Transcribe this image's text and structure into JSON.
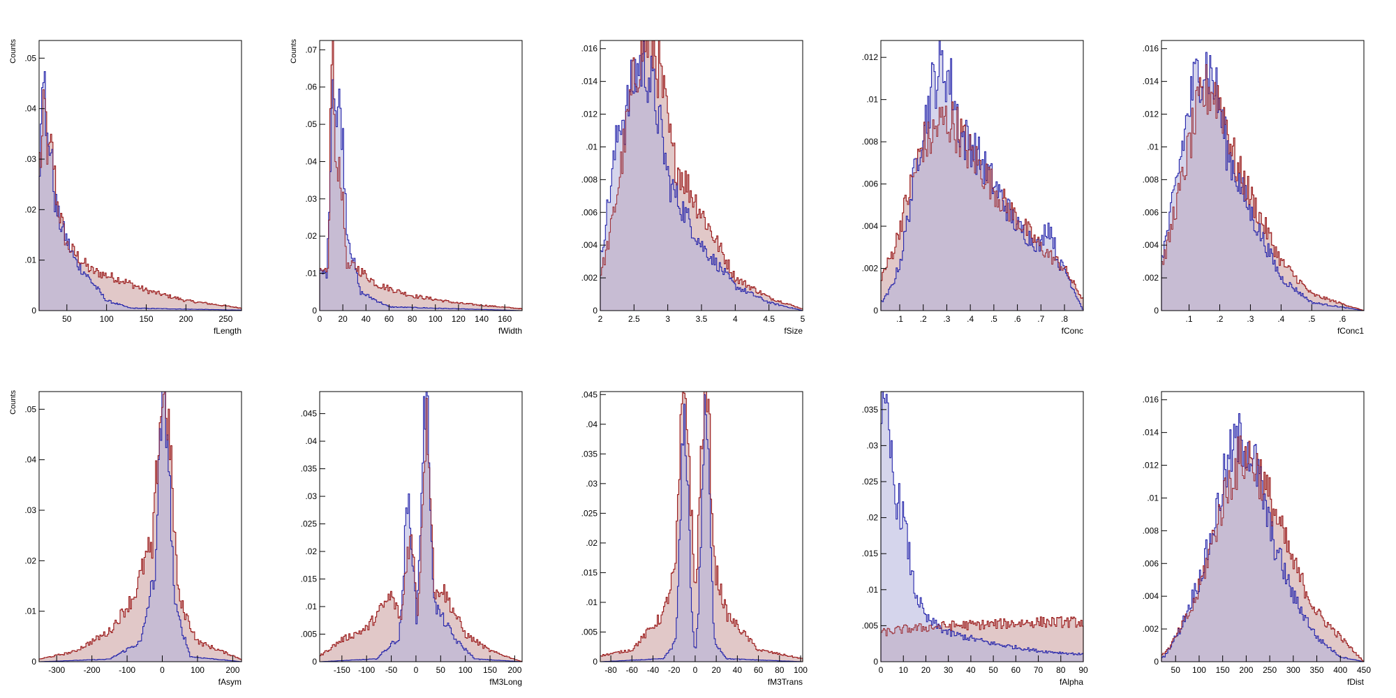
{
  "colors": {
    "signal": "#2222aa",
    "signal_fill": "#b3b3dd",
    "background": "#9b1c1c",
    "background_fill": "#c89a9a",
    "frame": "#000000"
  },
  "chart_data": [
    {
      "type": "histogram",
      "xlabel": "fLength",
      "ylabel": "Counts",
      "xlim": [
        15,
        270
      ],
      "ylim": [
        0,
        0.0535
      ],
      "xticks": [
        50,
        100,
        150,
        200,
        250
      ],
      "yticks": [
        0,
        0.01,
        0.02,
        0.03,
        0.04,
        0.05
      ],
      "series": [
        {
          "peaks": [
            [
              20,
              0.051,
              4
            ],
            [
              27,
              0.034,
              8
            ]
          ],
          "tail": [
            [
              25,
              0.03
            ],
            [
              40,
              0.018
            ],
            [
              60,
              0.01
            ],
            [
              80,
              0.006
            ],
            [
              100,
              0.002
            ],
            [
              130,
              0.0005
            ],
            [
              270,
              0.0001
            ]
          ]
        },
        {
          "peaks": [
            [
              22,
              0.04,
              5
            ],
            [
              30,
              0.032,
              8
            ]
          ],
          "tail": [
            [
              25,
              0.03
            ],
            [
              50,
              0.013
            ],
            [
              80,
              0.008
            ],
            [
              120,
              0.006
            ],
            [
              150,
              0.004
            ],
            [
              200,
              0.002
            ],
            [
              270,
              0.0005
            ]
          ]
        }
      ]
    },
    {
      "type": "histogram",
      "xlabel": "fWidth",
      "ylabel": "Counts",
      "xlim": [
        0,
        175
      ],
      "ylim": [
        0,
        0.0725
      ],
      "xticks": [
        0,
        20,
        40,
        60,
        80,
        100,
        120,
        140,
        160
      ],
      "yticks": [
        0,
        0.01,
        0.02,
        0.03,
        0.04,
        0.05,
        0.06,
        0.07
      ],
      "series": [
        {
          "peaks": [
            [
              12,
              0.065,
              3
            ],
            [
              17,
              0.055,
              5
            ]
          ],
          "tail": [
            [
              10,
              0.01
            ],
            [
              25,
              0.02
            ],
            [
              35,
              0.005
            ],
            [
              60,
              0.001
            ],
            [
              175,
              0.0
            ]
          ]
        },
        {
          "peaks": [
            [
              11,
              0.072,
              2
            ],
            [
              16,
              0.04,
              5
            ]
          ],
          "tail": [
            [
              10,
              0.01
            ],
            [
              30,
              0.012
            ],
            [
              50,
              0.007
            ],
            [
              80,
              0.004
            ],
            [
              120,
              0.002
            ],
            [
              175,
              0.0005
            ]
          ]
        }
      ]
    },
    {
      "type": "histogram",
      "xlabel": "fSize",
      "ylabel": "",
      "xlim": [
        2,
        5
      ],
      "ylim": [
        0,
        0.0165
      ],
      "xticks": [
        2,
        2.5,
        3,
        3.5,
        4,
        4.5,
        5
      ],
      "yticks": [
        0,
        0.002,
        0.004,
        0.006,
        0.008,
        0.01,
        0.012,
        0.014,
        0.016
      ],
      "series": [
        {
          "peaks": [
            [
              2.62,
              0.015,
              0.35
            ]
          ],
          "tail": [
            [
              2.0,
              0.003
            ],
            [
              2.3,
              0.012
            ],
            [
              3.0,
              0.008
            ],
            [
              3.5,
              0.004
            ],
            [
              4.0,
              0.0015
            ],
            [
              4.5,
              0.0005
            ],
            [
              5.0,
              0.0
            ]
          ]
        },
        {
          "peaks": [
            [
              2.7,
              0.0165,
              0.35
            ]
          ],
          "tail": [
            [
              2.0,
              0.0005
            ],
            [
              2.2,
              0.004
            ],
            [
              2.5,
              0.013
            ],
            [
              3.0,
              0.01
            ],
            [
              3.5,
              0.006
            ],
            [
              4.0,
              0.002
            ],
            [
              4.5,
              0.0008
            ],
            [
              5.0,
              0.0001
            ]
          ]
        }
      ]
    },
    {
      "type": "histogram",
      "xlabel": "fConc",
      "ylabel": "",
      "xlim": [
        0.02,
        0.88
      ],
      "ylim": [
        0,
        0.0128
      ],
      "xticks": [
        0.1,
        0.2,
        0.3,
        0.4,
        0.5,
        0.6,
        0.7,
        0.8
      ],
      "yticks": [
        0,
        0.002,
        0.004,
        0.006,
        0.008,
        0.01,
        0.012
      ],
      "series": [
        {
          "peaks": [
            [
              0.28,
              0.0115,
              0.1
            ],
            [
              0.73,
              0.004,
              0.04
            ]
          ],
          "tail": [
            [
              0.02,
              0.0
            ],
            [
              0.1,
              0.002
            ],
            [
              0.2,
              0.009
            ],
            [
              0.4,
              0.008
            ],
            [
              0.6,
              0.004
            ],
            [
              0.7,
              0.003
            ],
            [
              0.8,
              0.002
            ],
            [
              0.88,
              0.0
            ]
          ]
        },
        {
          "peaks": [
            [
              0.3,
              0.009,
              0.15
            ]
          ],
          "tail": [
            [
              0.02,
              0.0
            ],
            [
              0.1,
              0.004
            ],
            [
              0.2,
              0.008
            ],
            [
              0.4,
              0.0075
            ],
            [
              0.55,
              0.005
            ],
            [
              0.7,
              0.003
            ],
            [
              0.8,
              0.002
            ],
            [
              0.88,
              0.0005
            ]
          ]
        }
      ]
    },
    {
      "type": "histogram",
      "xlabel": "fConc1",
      "ylabel": "",
      "xlim": [
        0.01,
        0.67
      ],
      "ylim": [
        0,
        0.0165
      ],
      "xticks": [
        0.1,
        0.2,
        0.3,
        0.4,
        0.5,
        0.6
      ],
      "yticks": [
        0,
        0.002,
        0.004,
        0.006,
        0.008,
        0.01,
        0.012,
        0.014,
        0.016
      ],
      "series": [
        {
          "peaks": [
            [
              0.15,
              0.015,
              0.08
            ]
          ],
          "tail": [
            [
              0.01,
              0.0
            ],
            [
              0.05,
              0.004
            ],
            [
              0.1,
              0.01
            ],
            [
              0.2,
              0.011
            ],
            [
              0.3,
              0.006
            ],
            [
              0.4,
              0.002
            ],
            [
              0.5,
              0.0005
            ],
            [
              0.67,
              0.0
            ]
          ]
        },
        {
          "peaks": [
            [
              0.17,
              0.0135,
              0.09
            ]
          ],
          "tail": [
            [
              0.01,
              0.0
            ],
            [
              0.05,
              0.006
            ],
            [
              0.1,
              0.009
            ],
            [
              0.2,
              0.011
            ],
            [
              0.3,
              0.007
            ],
            [
              0.4,
              0.003
            ],
            [
              0.5,
              0.001
            ],
            [
              0.67,
              0.0
            ]
          ]
        }
      ]
    },
    {
      "type": "histogram",
      "xlabel": "fAsym",
      "ylabel": "Counts",
      "xlim": [
        -350,
        225
      ],
      "ylim": [
        0,
        0.0535
      ],
      "xticks": [
        -300,
        -200,
        -100,
        0,
        100,
        200
      ],
      "yticks": [
        0,
        0.01,
        0.02,
        0.03,
        0.04,
        0.05
      ],
      "series": [
        {
          "peaks": [
            [
              5,
              0.052,
              18
            ]
          ],
          "tail": [
            [
              -350,
              0.0
            ],
            [
              -150,
              0.0005
            ],
            [
              -60,
              0.004
            ],
            [
              -30,
              0.015
            ],
            [
              40,
              0.01
            ],
            [
              80,
              0.001
            ],
            [
              225,
              0.0
            ]
          ]
        },
        {
          "peaks": [
            [
              5,
              0.053,
              25
            ]
          ],
          "tail": [
            [
              -350,
              0.0005
            ],
            [
              -250,
              0.002
            ],
            [
              -150,
              0.006
            ],
            [
              -80,
              0.013
            ],
            [
              -40,
              0.022
            ],
            [
              50,
              0.012
            ],
            [
              100,
              0.004
            ],
            [
              225,
              0.0005
            ]
          ]
        }
      ]
    },
    {
      "type": "histogram",
      "xlabel": "fM3Long",
      "ylabel": "",
      "xlim": [
        -195,
        215
      ],
      "ylim": [
        0,
        0.049
      ],
      "xticks": [
        -150,
        -100,
        -50,
        0,
        50,
        100,
        150,
        200
      ],
      "yticks": [
        0,
        0.005,
        0.01,
        0.015,
        0.02,
        0.025,
        0.03,
        0.035,
        0.04,
        0.045
      ],
      "series": [
        {
          "peaks": [
            [
              -15,
              0.028,
              10
            ],
            [
              20,
              0.047,
              10
            ]
          ],
          "tail": [
            [
              -195,
              0.0
            ],
            [
              -80,
              0.0005
            ],
            [
              -40,
              0.004
            ],
            [
              0,
              0.002
            ],
            [
              40,
              0.01
            ],
            [
              80,
              0.004
            ],
            [
              120,
              0.0005
            ],
            [
              215,
              0.0
            ]
          ]
        },
        {
          "peaks": [
            [
              -12,
              0.022,
              12
            ],
            [
              22,
              0.043,
              10
            ]
          ],
          "tail": [
            [
              -195,
              0.001
            ],
            [
              -150,
              0.004
            ],
            [
              -100,
              0.006
            ],
            [
              -50,
              0.012
            ],
            [
              0,
              0.001
            ],
            [
              50,
              0.014
            ],
            [
              100,
              0.005
            ],
            [
              150,
              0.002
            ],
            [
              215,
              0.0
            ]
          ]
        }
      ]
    },
    {
      "type": "histogram",
      "xlabel": "fM3Trans",
      "ylabel": "",
      "xlim": [
        -90,
        102
      ],
      "ylim": [
        0,
        0.0455
      ],
      "xticks": [
        -80,
        -60,
        -40,
        -20,
        0,
        20,
        40,
        60,
        80,
        100
      ],
      "yticks": [
        0,
        0.005,
        0.01,
        0.015,
        0.02,
        0.025,
        0.03,
        0.035,
        0.04,
        0.045
      ],
      "series": [
        {
          "peaks": [
            [
              -10,
              0.04,
              4
            ],
            [
              10,
              0.041,
              4
            ]
          ],
          "tail": [
            [
              -90,
              0.0
            ],
            [
              -30,
              0.0005
            ],
            [
              -16,
              0.004
            ],
            [
              0,
              0.0
            ],
            [
              16,
              0.004
            ],
            [
              30,
              0.0005
            ],
            [
              102,
              0.0
            ]
          ]
        },
        {
          "peaks": [
            [
              -10,
              0.045,
              6
            ],
            [
              10,
              0.045,
              6
            ]
          ],
          "tail": [
            [
              -90,
              0.001
            ],
            [
              -60,
              0.002
            ],
            [
              -30,
              0.008
            ],
            [
              -20,
              0.015
            ],
            [
              0,
              0.0
            ],
            [
              20,
              0.015
            ],
            [
              30,
              0.008
            ],
            [
              60,
              0.002
            ],
            [
              102,
              0.0005
            ]
          ]
        }
      ]
    },
    {
      "type": "histogram",
      "xlabel": "fAlpha",
      "ylabel": "",
      "xlim": [
        0,
        90
      ],
      "ylim": [
        0,
        0.0375
      ],
      "xticks": [
        0,
        10,
        20,
        30,
        40,
        50,
        60,
        70,
        80,
        90
      ],
      "yticks": [
        0,
        0.005,
        0.01,
        0.015,
        0.02,
        0.025,
        0.03,
        0.035
      ],
      "series": [
        {
          "peaks": [
            [
              1,
              0.034,
              6
            ]
          ],
          "tail": [
            [
              0,
              0.03
            ],
            [
              10,
              0.02
            ],
            [
              15,
              0.01
            ],
            [
              20,
              0.006
            ],
            [
              30,
              0.004
            ],
            [
              50,
              0.0025
            ],
            [
              70,
              0.0015
            ],
            [
              90,
              0.001
            ]
          ]
        },
        {
          "peaks": [],
          "tail": [
            [
              0,
              0.004
            ],
            [
              10,
              0.0045
            ],
            [
              30,
              0.005
            ],
            [
              50,
              0.0052
            ],
            [
              70,
              0.0055
            ],
            [
              90,
              0.0055
            ]
          ]
        }
      ]
    },
    {
      "type": "histogram",
      "xlabel": "fDist",
      "ylabel": "",
      "xlim": [
        20,
        450
      ],
      "ylim": [
        0,
        0.0165
      ],
      "xticks": [
        50,
        100,
        150,
        200,
        250,
        300,
        350,
        400,
        450
      ],
      "yticks": [
        0,
        0.002,
        0.004,
        0.006,
        0.008,
        0.01,
        0.012,
        0.014,
        0.016
      ],
      "series": [
        {
          "peaks": [
            [
              190,
              0.0135,
              60
            ]
          ],
          "tail": [
            [
              20,
              0.0
            ],
            [
              60,
              0.002
            ],
            [
              100,
              0.005
            ],
            [
              150,
              0.01
            ],
            [
              250,
              0.008
            ],
            [
              300,
              0.004
            ],
            [
              350,
              0.0015
            ],
            [
              400,
              0.0003
            ],
            [
              450,
              0.0
            ]
          ]
        },
        {
          "peaks": [
            [
              200,
              0.0125,
              70
            ]
          ],
          "tail": [
            [
              20,
              0.0
            ],
            [
              60,
              0.002
            ],
            [
              100,
              0.004
            ],
            [
              150,
              0.008
            ],
            [
              250,
              0.01
            ],
            [
              300,
              0.006
            ],
            [
              350,
              0.003
            ],
            [
              400,
              0.0015
            ],
            [
              450,
              0.0
            ]
          ]
        }
      ]
    }
  ]
}
